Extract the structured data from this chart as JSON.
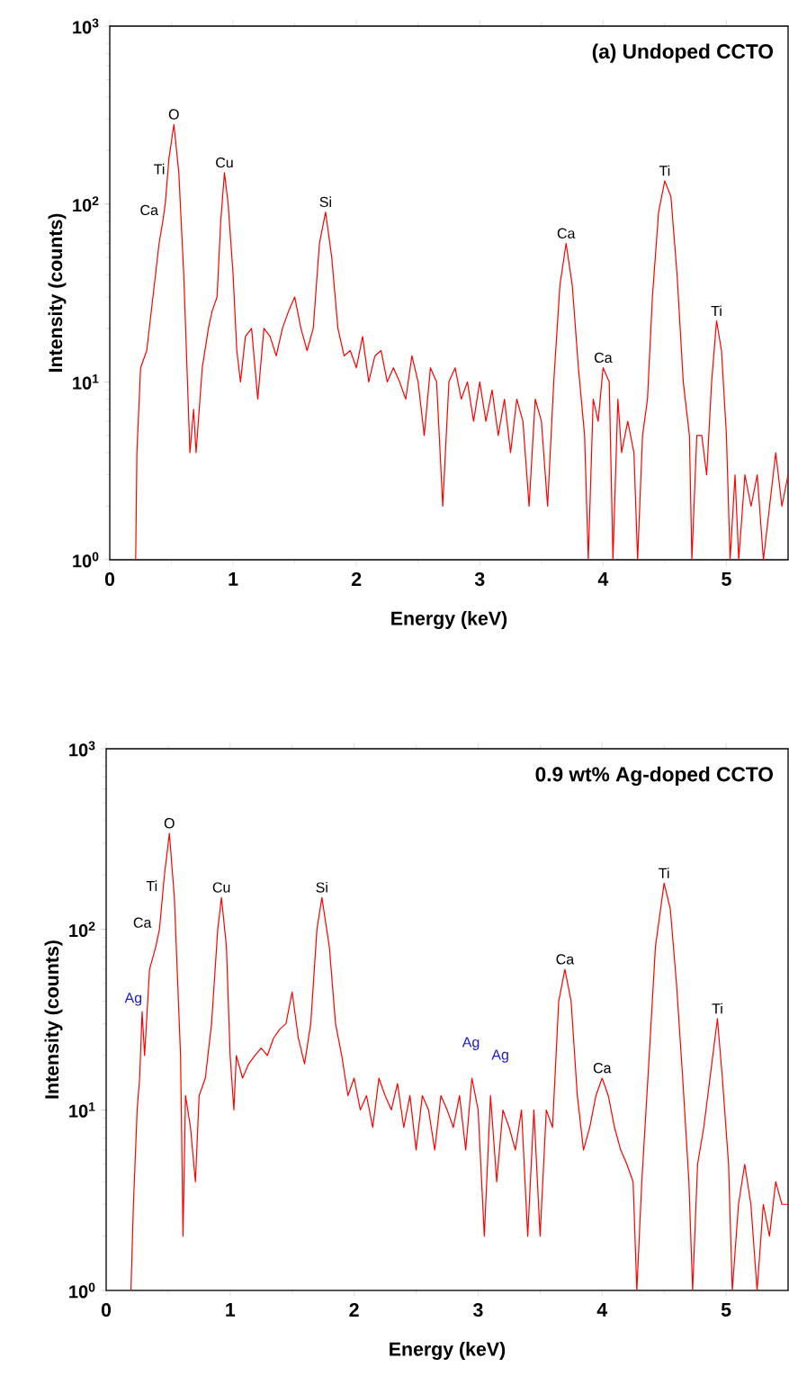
{
  "chart_data": [
    {
      "type": "line",
      "title": "(a) Undoped CCTO",
      "xlabel": "Energy (keV)",
      "ylabel": "Intensity (counts)",
      "log": "y",
      "xlim": [
        0,
        5.5
      ],
      "ylim": [
        1,
        1000
      ],
      "xticks": [
        0,
        1,
        2,
        3,
        4,
        5
      ],
      "yticks": [
        {
          "value": 1,
          "label": "10$^{0}$"
        },
        {
          "value": 10,
          "label": "10$^{1}$"
        },
        {
          "value": 100,
          "label": "10$^{2}$"
        },
        {
          "value": 1000,
          "label": "10$^{3}$"
        }
      ],
      "color": "#ff0000",
      "x": [
        0.21,
        0.22,
        0.25,
        0.3,
        0.35,
        0.4,
        0.43,
        0.45,
        0.48,
        0.52,
        0.56,
        0.6,
        0.63,
        0.65,
        0.68,
        0.7,
        0.75,
        0.8,
        0.83,
        0.87,
        0.9,
        0.93,
        0.96,
        1.0,
        1.03,
        1.06,
        1.1,
        1.15,
        1.2,
        1.25,
        1.3,
        1.35,
        1.4,
        1.45,
        1.5,
        1.55,
        1.6,
        1.65,
        1.7,
        1.75,
        1.8,
        1.85,
        1.9,
        1.95,
        2.0,
        2.05,
        2.1,
        2.15,
        2.2,
        2.25,
        2.3,
        2.35,
        2.4,
        2.45,
        2.5,
        2.55,
        2.6,
        2.65,
        2.7,
        2.75,
        2.8,
        2.85,
        2.9,
        2.95,
        3.0,
        3.05,
        3.1,
        3.15,
        3.2,
        3.25,
        3.3,
        3.35,
        3.4,
        3.45,
        3.5,
        3.55,
        3.6,
        3.65,
        3.7,
        3.75,
        3.8,
        3.85,
        3.88,
        3.92,
        3.96,
        4.0,
        4.05,
        4.08,
        4.12,
        4.15,
        4.2,
        4.25,
        4.28,
        4.32,
        4.36,
        4.4,
        4.45,
        4.5,
        4.55,
        4.6,
        4.65,
        4.7,
        4.72,
        4.76,
        4.8,
        4.84,
        4.88,
        4.92,
        4.96,
        5.0,
        5.03,
        5.07,
        5.1,
        5.15,
        5.2,
        5.25,
        5.3,
        5.35,
        5.4,
        5.45,
        5.5
      ],
      "values": [
        1,
        4,
        12,
        15,
        30,
        60,
        80,
        100,
        180,
        280,
        150,
        40,
        10,
        4,
        7,
        4,
        12,
        20,
        25,
        30,
        80,
        150,
        100,
        40,
        15,
        10,
        18,
        20,
        8,
        20,
        18,
        14,
        20,
        25,
        30,
        20,
        15,
        20,
        60,
        90,
        50,
        20,
        14,
        15,
        12,
        18,
        10,
        14,
        15,
        10,
        12,
        10,
        8,
        14,
        10,
        5,
        12,
        10,
        2,
        10,
        12,
        8,
        10,
        6,
        10,
        6,
        9,
        5,
        8,
        4,
        8,
        6,
        2,
        8,
        6,
        2,
        10,
        35,
        60,
        35,
        12,
        5,
        1,
        8,
        6,
        12,
        10,
        1,
        8,
        4,
        6,
        4,
        1,
        5,
        8,
        30,
        90,
        135,
        110,
        40,
        10,
        5,
        1,
        5,
        5,
        3,
        10,
        22,
        15,
        5,
        1,
        3,
        1,
        3,
        2,
        3,
        1,
        2,
        4,
        2,
        3
      ],
      "annotations": [
        "Ca",
        "Ti",
        {
          "text": "O",
          "x": 0.52,
          "y": 280
        },
        {
          "text": "Cu",
          "x": 0.93,
          "y": 150
        },
        {
          "text": "Si",
          "x": 1.75,
          "y": 90
        },
        {
          "text": "Ca",
          "x": 3.7,
          "y": 60
        },
        {
          "text": "Ca",
          "x": 4.0,
          "y": 12
        },
        {
          "text": "Ti",
          "x": 4.5,
          "y": 135
        },
        {
          "text": "Ti",
          "x": 4.92,
          "y": 22
        }
      ]
    },
    {
      "type": "line",
      "title": "0.9 wt% Ag-doped CCTO",
      "xlabel": "Energy (keV)",
      "ylabel": "Intensity (counts)",
      "log": "y",
      "xlim": [
        0,
        5.5
      ],
      "ylim": [
        1,
        1000
      ],
      "xticks": [
        0,
        1,
        2,
        3,
        4,
        5
      ],
      "yticks": [
        {
          "value": 1,
          "label": "10$^{0}$"
        },
        {
          "value": 10,
          "label": "10$^{1}$"
        },
        {
          "value": 100,
          "label": "10$^{2}$"
        },
        {
          "value": 1000,
          "label": "10$^{3}$"
        }
      ],
      "color": "#ff0000",
      "x": [
        0.2,
        0.22,
        0.25,
        0.27,
        0.29,
        0.31,
        0.35,
        0.4,
        0.43,
        0.47,
        0.51,
        0.55,
        0.6,
        0.62,
        0.64,
        0.68,
        0.72,
        0.75,
        0.8,
        0.85,
        0.9,
        0.93,
        0.97,
        1.0,
        1.03,
        1.05,
        1.1,
        1.15,
        1.2,
        1.25,
        1.3,
        1.35,
        1.4,
        1.45,
        1.5,
        1.55,
        1.6,
        1.65,
        1.7,
        1.74,
        1.8,
        1.85,
        1.9,
        1.95,
        2.0,
        2.05,
        2.1,
        2.15,
        2.2,
        2.25,
        2.3,
        2.35,
        2.4,
        2.45,
        2.5,
        2.55,
        2.6,
        2.65,
        2.7,
        2.75,
        2.8,
        2.85,
        2.9,
        2.95,
        3.0,
        3.05,
        3.1,
        3.15,
        3.2,
        3.25,
        3.3,
        3.35,
        3.4,
        3.45,
        3.5,
        3.55,
        3.6,
        3.65,
        3.7,
        3.75,
        3.8,
        3.85,
        3.9,
        3.95,
        4.0,
        4.05,
        4.1,
        4.15,
        4.2,
        4.25,
        4.28,
        4.32,
        4.38,
        4.43,
        4.5,
        4.55,
        4.6,
        4.65,
        4.7,
        4.73,
        4.77,
        4.82,
        4.87,
        4.93,
        4.97,
        5.02,
        5.05,
        5.1,
        5.15,
        5.2,
        5.25,
        5.3,
        5.35,
        5.4,
        5.45,
        5.5
      ],
      "values": [
        1,
        3,
        10,
        15,
        35,
        20,
        60,
        80,
        100,
        200,
        340,
        150,
        20,
        2,
        12,
        8,
        4,
        12,
        15,
        30,
        100,
        150,
        80,
        20,
        10,
        20,
        15,
        18,
        20,
        22,
        20,
        25,
        28,
        30,
        45,
        25,
        18,
        30,
        100,
        150,
        80,
        30,
        20,
        12,
        15,
        10,
        12,
        8,
        15,
        12,
        10,
        14,
        8,
        12,
        6,
        12,
        10,
        6,
        12,
        10,
        8,
        12,
        6,
        15,
        10,
        2,
        12,
        4,
        10,
        8,
        6,
        10,
        2,
        10,
        2,
        10,
        8,
        40,
        60,
        40,
        12,
        6,
        8,
        12,
        15,
        12,
        8,
        6,
        5,
        4,
        1,
        4,
        20,
        80,
        180,
        130,
        50,
        15,
        4,
        1,
        5,
        8,
        15,
        32,
        15,
        5,
        1,
        3,
        5,
        3,
        1,
        3,
        2,
        4,
        3,
        3
      ],
      "annotations": [
        "Ag",
        "Ca",
        "Ti",
        {
          "text": "O",
          "x": 0.51,
          "y": 340
        },
        {
          "text": "Cu",
          "x": 0.93,
          "y": 150
        },
        {
          "text": "Si",
          "x": 1.74,
          "y": 150
        },
        "Ag",
        "Ag",
        {
          "text": "Ca",
          "x": 3.7,
          "y": 60
        },
        {
          "text": "Ca",
          "x": 4.0,
          "y": 15
        },
        {
          "text": "Ti",
          "x": 4.5,
          "y": 180
        },
        {
          "text": "Ti",
          "x": 4.93,
          "y": 32
        }
      ]
    }
  ]
}
